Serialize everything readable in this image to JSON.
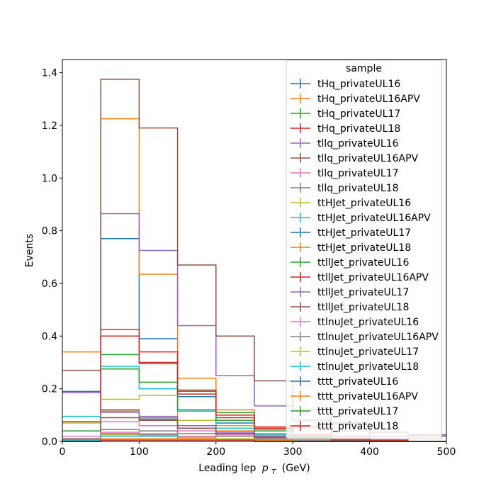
{
  "chart_data": {
    "type": "step-histogram",
    "xlabel": "Leading lep",
    "xlabel_math": "p",
    "xlabel_math_sub": "T",
    "xlabel_unit": "(GeV)",
    "ylabel": "Events",
    "xlim": [
      0,
      500
    ],
    "ylim": [
      0,
      1.45
    ],
    "x_ticks": [
      "0",
      "100",
      "200",
      "300",
      "400",
      "500"
    ],
    "y_ticks": [
      "0.0",
      "0.2",
      "0.4",
      "0.6",
      "0.8",
      "1.0",
      "1.2",
      "1.4"
    ],
    "bin_edges": [
      0,
      50,
      100,
      150,
      200,
      250,
      300,
      350,
      400,
      450,
      500
    ],
    "legend_title": "sample",
    "legend_position": "top-right",
    "series": [
      {
        "name": "tHq_privateUL16",
        "color": "#1f77b4",
        "values": [
          0.19,
          0.77,
          0.39,
          0.17,
          0.07,
          0.03,
          0.01,
          0.005,
          0.0,
          0.0
        ]
      },
      {
        "name": "tHq_privateUL16APV",
        "color": "#ff7f0e",
        "values": [
          0.34,
          1.225,
          0.635,
          0.24,
          0.12,
          0.045,
          0.02,
          0.01,
          0.0,
          0.0
        ]
      },
      {
        "name": "tHq_privateUL17",
        "color": "#2ca02c",
        "values": [
          0.04,
          0.33,
          0.295,
          0.19,
          0.11,
          0.03,
          0.015,
          0.005,
          0.0,
          0.0
        ]
      },
      {
        "name": "tHq_privateUL18",
        "color": "#d62728",
        "values": [
          0.075,
          0.425,
          0.34,
          0.195,
          0.09,
          0.055,
          0.055,
          0.02,
          0.005,
          0.0
        ]
      },
      {
        "name": "tllq_privateUL16",
        "color": "#9467bd",
        "values": [
          0.185,
          0.865,
          0.725,
          0.44,
          0.25,
          0.135,
          0.08,
          0.04,
          0.02,
          0.02
        ]
      },
      {
        "name": "tllq_privateUL16APV",
        "color": "#8c564b",
        "values": [
          0.27,
          1.375,
          1.19,
          0.67,
          0.4,
          0.23,
          0.12,
          0.07,
          0.035,
          0.025
        ]
      },
      {
        "name": "tllq_privateUL17",
        "color": "#e377c2",
        "values": [
          0.02,
          0.075,
          0.06,
          0.04,
          0.025,
          0.015,
          0.01,
          0.005,
          0.0,
          0.0
        ]
      },
      {
        "name": "tllq_privateUL18",
        "color": "#7f7f7f",
        "values": [
          0.01,
          0.045,
          0.04,
          0.03,
          0.02,
          0.01,
          0.005,
          0.0,
          0.0,
          0.0
        ]
      },
      {
        "name": "ttHJet_privateUL16",
        "color": "#bcbd22",
        "values": [
          0.07,
          0.16,
          0.175,
          0.08,
          0.06,
          0.03,
          0.02,
          0.01,
          0.0,
          0.0
        ]
      },
      {
        "name": "ttHJet_privateUL16APV",
        "color": "#17becf",
        "values": [
          0.095,
          0.285,
          0.2,
          0.115,
          0.05,
          0.025,
          0.01,
          0.005,
          0.0,
          0.0
        ]
      },
      {
        "name": "ttHJet_privateUL17",
        "color": "#1f77b4",
        "values": [
          0.005,
          0.12,
          0.085,
          0.05,
          0.03,
          0.02,
          0.01,
          0.005,
          0.0,
          0.0
        ]
      },
      {
        "name": "ttHJet_privateUL18",
        "color": "#ff7f0e",
        "values": [
          0.005,
          0.115,
          0.09,
          0.06,
          0.04,
          0.02,
          0.01,
          0.005,
          0.0,
          0.0
        ]
      },
      {
        "name": "ttllJet_privateUL16",
        "color": "#2ca02c",
        "values": [
          0.01,
          0.275,
          0.225,
          0.12,
          0.08,
          0.04,
          0.02,
          0.01,
          0.005,
          0.0
        ]
      },
      {
        "name": "ttllJet_privateUL16APV",
        "color": "#d62728",
        "values": [
          0.005,
          0.4,
          0.3,
          0.18,
          0.1,
          0.05,
          0.025,
          0.01,
          0.005,
          0.0
        ]
      },
      {
        "name": "ttllJet_privateUL17",
        "color": "#9467bd",
        "values": [
          0.005,
          0.11,
          0.095,
          0.06,
          0.035,
          0.02,
          0.01,
          0.005,
          0.0,
          0.0
        ]
      },
      {
        "name": "ttllJet_privateUL18",
        "color": "#8c564b",
        "values": [
          0.01,
          0.09,
          0.08,
          0.05,
          0.03,
          0.015,
          0.01,
          0.005,
          0.0,
          0.0
        ]
      },
      {
        "name": "ttlnuJet_privateUL16",
        "color": "#e377c2",
        "values": [
          0.005,
          0.035,
          0.03,
          0.02,
          0.01,
          0.005,
          0.0,
          0.0,
          0.0,
          0.0
        ]
      },
      {
        "name": "ttlnuJet_privateUL16APV",
        "color": "#7f7f7f",
        "values": [
          0.005,
          0.03,
          0.025,
          0.015,
          0.01,
          0.005,
          0.0,
          0.0,
          0.0,
          0.0
        ]
      },
      {
        "name": "ttlnuJet_privateUL17",
        "color": "#bcbd22",
        "values": [
          0.005,
          0.025,
          0.02,
          0.015,
          0.01,
          0.005,
          0.0,
          0.0,
          0.0,
          0.0
        ]
      },
      {
        "name": "ttlnuJet_privateUL18",
        "color": "#17becf",
        "values": [
          0.005,
          0.02,
          0.02,
          0.01,
          0.005,
          0.005,
          0.0,
          0.0,
          0.0,
          0.0
        ]
      },
      {
        "name": "tttt_privateUL16",
        "color": "#1f77b4",
        "values": [
          0.0,
          0.01,
          0.01,
          0.01,
          0.005,
          0.005,
          0.0,
          0.0,
          0.0,
          0.0
        ]
      },
      {
        "name": "tttt_privateUL16APV",
        "color": "#ff7f0e",
        "values": [
          0.0,
          0.01,
          0.01,
          0.01,
          0.005,
          0.005,
          0.0,
          0.0,
          0.0,
          0.0
        ]
      },
      {
        "name": "tttt_privateUL17",
        "color": "#2ca02c",
        "values": [
          0.0,
          0.005,
          0.005,
          0.005,
          0.005,
          0.0,
          0.0,
          0.0,
          0.0,
          0.0
        ]
      },
      {
        "name": "tttt_privateUL18",
        "color": "#d62728",
        "values": [
          0.0,
          0.005,
          0.005,
          0.005,
          0.005,
          0.0,
          0.0,
          0.0,
          0.0,
          0.0
        ]
      }
    ]
  }
}
